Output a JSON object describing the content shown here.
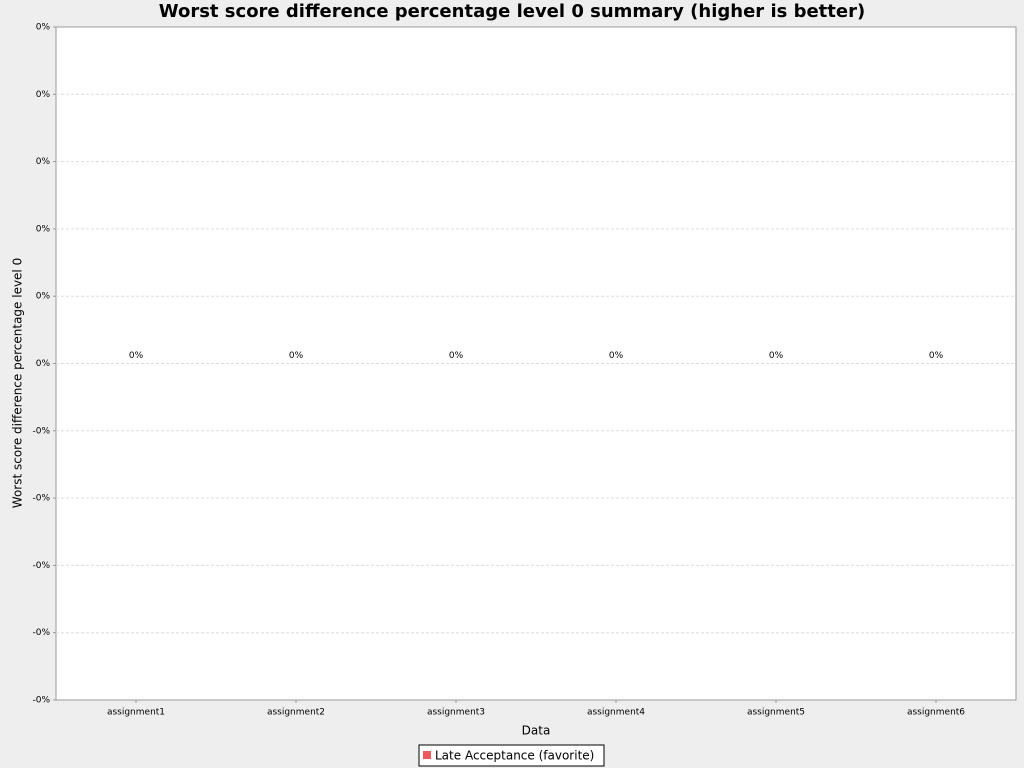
{
  "chart_data": {
    "type": "bar",
    "title": "Worst score difference percentage level 0 summary (higher is better)",
    "x_label": "Data",
    "y_label": "Worst score difference percentage level 0",
    "categories": [
      "assignment1",
      "assignment2",
      "assignment3",
      "assignment4",
      "assignment5",
      "assignment6"
    ],
    "series": [
      {
        "name": "Late Acceptance (favorite)",
        "color": "#f05a5a",
        "values": [
          0,
          0,
          0,
          0,
          0,
          0
        ],
        "value_labels": [
          "0%",
          "0%",
          "0%",
          "0%",
          "0%",
          "0%"
        ]
      }
    ],
    "ylim": [
      -0.05,
      0.05
    ],
    "yticks": [
      {
        "value": 0.05,
        "label": "0%"
      },
      {
        "value": 0.04,
        "label": "0%"
      },
      {
        "value": 0.03,
        "label": "0%"
      },
      {
        "value": 0.02,
        "label": "0%"
      },
      {
        "value": 0.01,
        "label": "0%"
      },
      {
        "value": 0,
        "label": "0%"
      },
      {
        "value": -0.01,
        "label": "-0%"
      },
      {
        "value": -0.02,
        "label": "-0%"
      },
      {
        "value": -0.03,
        "label": "-0%"
      },
      {
        "value": -0.04,
        "label": "-0%"
      },
      {
        "value": -0.05,
        "label": "-0%"
      }
    ],
    "grid": true,
    "legend": "bottom"
  }
}
